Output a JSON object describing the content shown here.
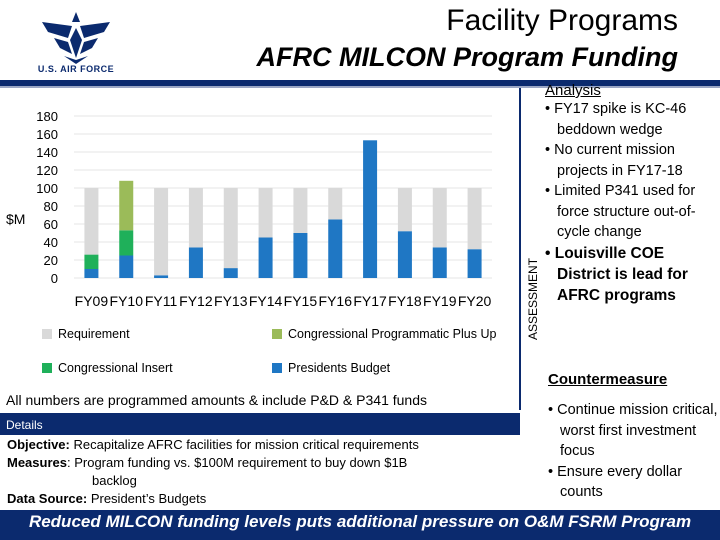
{
  "header": {
    "title": "Facility Programs",
    "subtitle": "AFRC MILCON Program Funding",
    "logo_text": "U.S. AIR FORCE"
  },
  "sidebar_label": "ASSESSMENT",
  "analysis": {
    "title": "Analysis",
    "bullets": [
      "FY17 spike is KC-46 beddown wedge",
      "No current mission projects in FY17-18",
      "Limited P341 used for force structure out-of-cycle change",
      "Louisville COE District is lead for AFRC programs"
    ]
  },
  "countermeasure": {
    "title": "Countermeasure",
    "bullets": [
      "Continue mission critical, worst first investment focus",
      "Ensure every dollar counts"
    ]
  },
  "note": "All numbers are programmed amounts & include P&D & P341 funds",
  "details": {
    "band": "Details",
    "objective_label": "Objective:",
    "objective": "Recapitalize AFRC facilities for mission critical requirements",
    "measures_label": "Measures",
    "measures": ": Program funding vs. $100M requirement to buy down $1B",
    "measures_cont": "backlog",
    "source_label": "Data Source:",
    "source": "President’s Budgets"
  },
  "footer": "Reduced MILCON funding levels puts additional pressure on O&M FSRM Program",
  "colors": {
    "navy": "#0b2a6e",
    "requirement": "#d9d9d9",
    "plus_up": "#9bbb59",
    "insert": "#1fb05a",
    "presidents_budget": "#1f77c4"
  },
  "chart_data": {
    "type": "bar",
    "stacked": true,
    "ylabel": "$M",
    "ylim": [
      0,
      180
    ],
    "yticks": [
      0,
      20,
      40,
      60,
      80,
      100,
      120,
      140,
      160,
      180
    ],
    "categories": [
      "FY09",
      "FY10",
      "FY11",
      "FY12",
      "FY13",
      "FY14",
      "FY15",
      "FY16",
      "FY17",
      "FY18",
      "FY19",
      "FY20"
    ],
    "series": [
      {
        "name": "Presidents Budget",
        "values": [
          10,
          25,
          3,
          34,
          11,
          45,
          50,
          65,
          153,
          52,
          34,
          32
        ]
      },
      {
        "name": "Congressional Insert",
        "values": [
          16,
          28,
          0,
          0,
          0,
          0,
          0,
          0,
          0,
          0,
          0,
          0
        ]
      },
      {
        "name": "Congressional Programmatic Plus Up",
        "values": [
          0,
          55,
          0,
          0,
          0,
          0,
          0,
          0,
          0,
          0,
          0,
          0
        ]
      },
      {
        "name": "Requirement",
        "values": [
          74,
          0,
          97,
          66,
          89,
          55,
          50,
          35,
          0,
          48,
          66,
          68
        ]
      }
    ],
    "legend": [
      "Requirement",
      "Congressional Programmatic Plus Up",
      "Congressional Insert",
      "Presidents Budget"
    ],
    "legend_position": "bottom"
  }
}
